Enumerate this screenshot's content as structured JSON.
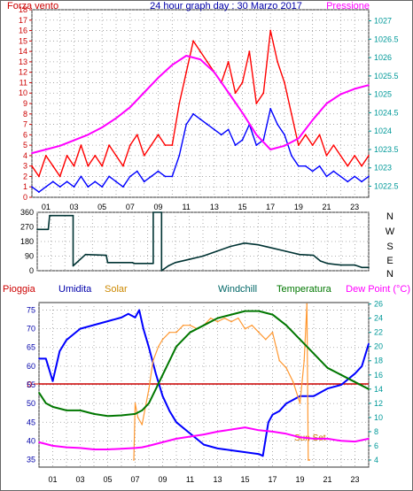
{
  "header": {
    "title": "24 hour graph day : 30 Marzo 2017"
  },
  "colors": {
    "wind": "#ff0000",
    "wind_avg": "#0000ff",
    "pressure": "#ff00ff",
    "direction": "#003333",
    "humidity": "#0000ff",
    "solar": "#ff9933",
    "windchill": "#006666",
    "temperature": "#007700",
    "dewpoint": "#ff00ff",
    "rain": "#cc0000",
    "axis_left": "#cc0000",
    "axis_right": "#009999",
    "title": "#0000aa",
    "grid": "#999999"
  },
  "chart_data": [
    {
      "type": "line",
      "x_ticks": [
        "01",
        "03",
        "05",
        "07",
        "09",
        "11",
        "13",
        "15",
        "17",
        "19",
        "21",
        "23"
      ],
      "xlim": [
        0,
        24
      ],
      "left_axis": {
        "label": "Forza vento",
        "ylim": [
          0,
          18
        ],
        "ticks": [
          0,
          1,
          2,
          3,
          4,
          5,
          6,
          7,
          8,
          9,
          10,
          11,
          12,
          13,
          14,
          15,
          16,
          17,
          18
        ]
      },
      "right_axis": {
        "label": "Pressione",
        "ylim": [
          1022.2,
          1027.3
        ],
        "ticks": [
          "1022.5",
          "1023",
          "1023.5",
          "1024",
          "1024.5",
          "1025",
          "1025.5",
          "1026",
          "1026.5",
          "1027"
        ]
      },
      "series": [
        {
          "name": "Forza vento",
          "axis": "left",
          "x": [
            0,
            0.5,
            1,
            1.5,
            2,
            2.5,
            3,
            3.5,
            4,
            4.5,
            5,
            5.5,
            6,
            6.5,
            7,
            7.5,
            8,
            8.5,
            9,
            9.5,
            10,
            10.5,
            11,
            11.5,
            12,
            12.5,
            13,
            13.5,
            14,
            14.5,
            15,
            15.5,
            16,
            16.5,
            17,
            17.5,
            18,
            18.5,
            19,
            19.5,
            20,
            20.5,
            21,
            21.5,
            22,
            22.5,
            23,
            23.5,
            24
          ],
          "values": [
            3,
            2,
            4,
            3,
            2,
            4,
            3,
            5,
            3,
            4,
            3,
            5,
            4,
            3,
            5,
            6,
            4,
            5,
            6,
            5,
            5,
            9,
            12,
            15,
            14,
            13,
            12,
            11,
            13,
            10,
            11,
            14,
            9,
            10,
            16,
            13,
            11,
            8,
            5,
            6,
            5,
            6,
            4,
            5,
            4,
            3,
            4,
            3,
            4
          ]
        },
        {
          "name": "",
          "axis": "left",
          "x": [
            0,
            0.5,
            1,
            1.5,
            2,
            2.5,
            3,
            3.5,
            4,
            4.5,
            5,
            5.5,
            6,
            6.5,
            7,
            7.5,
            8,
            8.5,
            9,
            9.5,
            10,
            10.5,
            11,
            11.5,
            12,
            12.5,
            13,
            13.5,
            14,
            14.5,
            15,
            15.5,
            16,
            16.5,
            17,
            17.5,
            18,
            18.5,
            19,
            19.5,
            20,
            20.5,
            21,
            21.5,
            22,
            22.5,
            23,
            23.5,
            24
          ],
          "values": [
            1,
            0.5,
            1,
            1.5,
            1,
            1.5,
            1,
            2,
            1,
            1.5,
            1,
            2,
            1.5,
            1,
            2,
            2.5,
            1.5,
            2,
            2.5,
            2,
            2,
            4,
            7,
            8,
            7.5,
            7,
            6.5,
            6,
            6.5,
            5,
            5.5,
            7,
            5,
            5.5,
            8.5,
            7,
            6,
            4,
            3,
            3,
            2.5,
            3,
            2,
            2.5,
            2,
            1.5,
            2,
            1.5,
            2
          ]
        },
        {
          "name": "Pressione",
          "axis": "right",
          "x": [
            0,
            1,
            2,
            3,
            4,
            5,
            6,
            7,
            8,
            9,
            10,
            11,
            12,
            13,
            14,
            15,
            16,
            17,
            18,
            19,
            20,
            21,
            22,
            23,
            24
          ],
          "values": [
            1023.4,
            1023.5,
            1023.6,
            1023.75,
            1023.9,
            1024.1,
            1024.35,
            1024.65,
            1025.05,
            1025.45,
            1025.8,
            1026.05,
            1025.95,
            1025.6,
            1025.05,
            1024.5,
            1023.9,
            1023.5,
            1023.6,
            1023.8,
            1024.3,
            1024.75,
            1025.0,
            1025.15,
            1025.25
          ]
        }
      ]
    },
    {
      "type": "line",
      "x_ticks": [
        "01",
        "03",
        "05",
        "07",
        "09",
        "11",
        "13",
        "15",
        "17",
        "19",
        "21",
        "23"
      ],
      "xlim": [
        0,
        24
      ],
      "y_axis": {
        "ylim": [
          0,
          360
        ],
        "ticks": [
          0,
          90,
          180,
          270,
          360
        ],
        "direction_labels": [
          "N",
          "W",
          "S",
          "E",
          "N"
        ]
      },
      "series": [
        {
          "name": "",
          "x": [
            0,
            0.8,
            0.9,
            2.6,
            2.6,
            3.5,
            5,
            5.1,
            6.9,
            7,
            8.4,
            8.4,
            9,
            9,
            9.5,
            10,
            11,
            12,
            13,
            14,
            15,
            16,
            17,
            18,
            19,
            20,
            20.5,
            21,
            22,
            23,
            23.5,
            24
          ],
          "values": [
            255,
            255,
            340,
            340,
            30,
            100,
            95,
            50,
            50,
            45,
            45,
            360,
            360,
            0,
            30,
            50,
            70,
            90,
            120,
            150,
            170,
            160,
            140,
            120,
            100,
            95,
            60,
            45,
            35,
            35,
            20,
            20
          ]
        }
      ]
    },
    {
      "type": "line",
      "x_ticks": [
        "01",
        "03",
        "05",
        "07",
        "09",
        "11",
        "13",
        "15",
        "17",
        "19",
        "21",
        "23"
      ],
      "xlim": [
        0,
        24
      ],
      "legend": [
        "Pioggia",
        "Umidita",
        "Solar",
        "Windchill",
        "Temperatura",
        "Dew Point (°C)"
      ],
      "left_axis": {
        "ylim": [
          33,
          77
        ],
        "ticks": [
          35,
          40,
          45,
          50,
          55,
          60,
          65,
          70,
          75
        ]
      },
      "right_axis": {
        "ylim": [
          3,
          26.2
        ],
        "ticks": [
          4,
          6,
          8,
          10,
          12,
          14,
          16,
          18,
          20,
          22,
          24,
          26
        ]
      },
      "rain_marker": "0",
      "annotations": [
        "Sun Set"
      ],
      "series": [
        {
          "name": "Umidita",
          "axis": "left",
          "x": [
            0,
            0.5,
            1,
            1.5,
            2,
            3,
            4,
            5,
            6,
            6.5,
            7,
            7.3,
            7.6,
            8,
            8.5,
            9,
            9.5,
            10,
            11,
            12,
            13,
            14,
            15,
            16,
            16.3,
            16.7,
            17,
            17.5,
            18,
            19,
            20,
            21,
            22,
            23,
            23.5,
            24
          ],
          "values": [
            62,
            62,
            56,
            64,
            67,
            70,
            71,
            72,
            73,
            74,
            73,
            75,
            70,
            65,
            58,
            52,
            48,
            45,
            42,
            39,
            38,
            37.5,
            37,
            36.5,
            36,
            45,
            47,
            48,
            50,
            52,
            52,
            54,
            55,
            58,
            60,
            66
          ]
        },
        {
          "name": "Solar",
          "axis": "right",
          "x": [
            6.9,
            7,
            7.2,
            7.5,
            8,
            8.3,
            8.7,
            9,
            9.5,
            10,
            10.5,
            11,
            11.5,
            12,
            12.5,
            13,
            13.5,
            14,
            14.5,
            15,
            15.5,
            16,
            16.5,
            17,
            17.5,
            18,
            18.5,
            19,
            19.3,
            19.5,
            19.6,
            19.7
          ],
          "values": [
            4,
            12,
            10,
            9,
            14,
            18,
            20,
            21,
            22,
            22,
            23,
            23,
            22.5,
            23,
            24,
            23.5,
            24,
            23.5,
            24,
            22.5,
            23,
            22,
            21,
            22,
            18,
            17,
            15,
            12,
            18,
            26,
            4,
            4
          ]
        },
        {
          "name": "Temperatura",
          "axis": "right",
          "x": [
            0,
            0.5,
            1,
            2,
            3,
            4,
            5,
            6,
            7,
            7.5,
            8,
            8.5,
            9,
            9.5,
            10,
            11,
            12,
            13,
            14,
            15,
            16,
            17,
            18,
            19,
            20,
            21,
            22,
            23,
            24
          ],
          "values": [
            13.5,
            12,
            11.5,
            11,
            11,
            10.5,
            10.2,
            10.3,
            10.5,
            11,
            12,
            14,
            16,
            18,
            20,
            22,
            23,
            24,
            24.5,
            25,
            25,
            24.5,
            23,
            21,
            19,
            17,
            16,
            15,
            14
          ]
        },
        {
          "name": "Dew Point (°C)",
          "axis": "right",
          "x": [
            0,
            1,
            2,
            3,
            4,
            5,
            6,
            7,
            7.5,
            8,
            9,
            10,
            11,
            12,
            13,
            14,
            15,
            16,
            17,
            18,
            19,
            20,
            21,
            22,
            23,
            24
          ],
          "values": [
            6.5,
            6,
            5.8,
            5.7,
            5.5,
            5.5,
            5.6,
            5.7,
            5.8,
            6,
            6.5,
            7,
            7.3,
            7.6,
            8,
            8.3,
            8.6,
            8.2,
            8,
            7.7,
            7.2,
            7,
            7,
            6.7,
            6.6,
            7
          ]
        }
      ]
    }
  ]
}
